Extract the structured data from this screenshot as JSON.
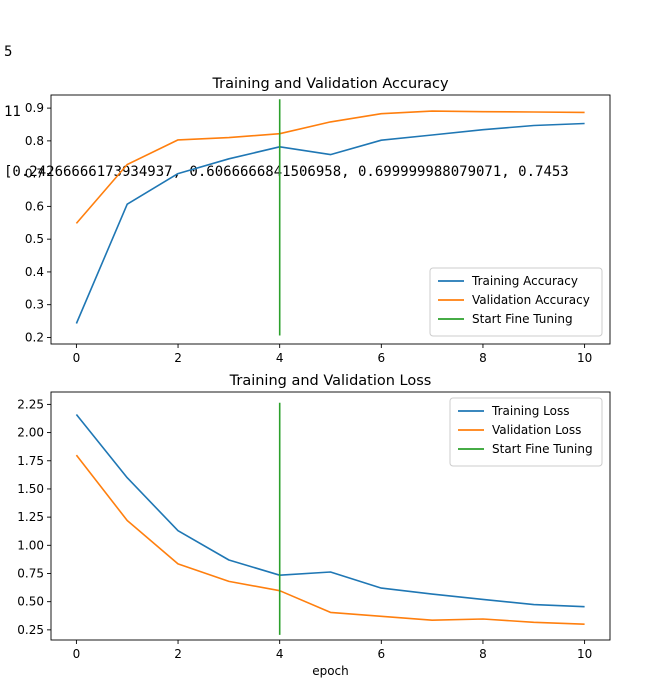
{
  "console_lines": [
    "5",
    "11",
    "[0.24266666173934937, 0.6066666841506958, 0.699999988079071, 0.7453"
  ],
  "chart_data": [
    {
      "type": "line",
      "title": "Training and Validation Accuracy",
      "xlabel": "",
      "ylabel": "",
      "xlim": [
        -0.5,
        10.5
      ],
      "ylim": [
        0.18,
        0.94
      ],
      "xticks": [
        "0",
        "2",
        "4",
        "6",
        "8",
        "10"
      ],
      "yticks": [
        "0.2",
        "0.3",
        "0.4",
        "0.5",
        "0.6",
        "0.7",
        "0.8",
        "0.9"
      ],
      "x": [
        0,
        1,
        2,
        3,
        4,
        5,
        6,
        7,
        8,
        9,
        10
      ],
      "series": [
        {
          "name": "Training Accuracy",
          "color": "#1f77b4",
          "values": [
            0.2427,
            0.6067,
            0.7,
            0.7453,
            0.782,
            0.758,
            0.802,
            0.818,
            0.834,
            0.847,
            0.853
          ]
        },
        {
          "name": "Validation Accuracy",
          "color": "#ff7f0e",
          "values": [
            0.548,
            0.728,
            0.803,
            0.81,
            0.822,
            0.858,
            0.883,
            0.891,
            0.889,
            0.888,
            0.887
          ]
        },
        {
          "name": "Start Fine Tuning",
          "color": "#2ca02c",
          "x": [
            4,
            4
          ],
          "values": [
            0.206,
            0.927
          ]
        }
      ],
      "legend": "lower right",
      "grid": false
    },
    {
      "type": "line",
      "title": "Training and Validation Loss",
      "xlabel": "epoch",
      "ylabel": "",
      "xlim": [
        -0.5,
        10.5
      ],
      "ylim": [
        0.16,
        2.36
      ],
      "xticks": [
        "0",
        "2",
        "4",
        "6",
        "8",
        "10"
      ],
      "yticks": [
        "0.25",
        "0.50",
        "0.75",
        "1.00",
        "1.25",
        "1.50",
        "1.75",
        "2.00",
        "2.25"
      ],
      "x": [
        0,
        1,
        2,
        3,
        4,
        5,
        6,
        7,
        8,
        9,
        10
      ],
      "series": [
        {
          "name": "Training Loss",
          "color": "#1f77b4",
          "values": [
            2.16,
            1.6,
            1.13,
            0.87,
            0.735,
            0.763,
            0.62,
            0.567,
            0.52,
            0.474,
            0.455
          ]
        },
        {
          "name": "Validation Loss",
          "color": "#ff7f0e",
          "values": [
            1.8,
            1.22,
            0.835,
            0.68,
            0.597,
            0.405,
            0.37,
            0.336,
            0.346,
            0.317,
            0.3
          ]
        },
        {
          "name": "Start Fine Tuning",
          "color": "#2ca02c",
          "x": [
            4,
            4
          ],
          "values": [
            0.205,
            2.265
          ]
        }
      ],
      "legend": "upper right",
      "grid": false
    }
  ]
}
